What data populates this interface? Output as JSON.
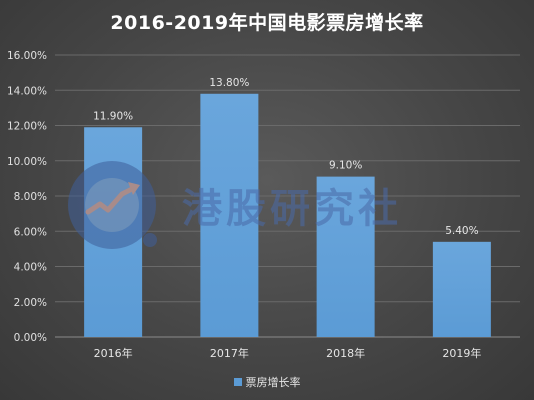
{
  "chart_data": {
    "type": "bar",
    "title": "2016-2019年中国电影票房增长率",
    "categories": [
      "2016年",
      "2017年",
      "2018年",
      "2019年"
    ],
    "series": [
      {
        "name": "票房增长率",
        "values": [
          11.9,
          13.8,
          9.1,
          5.4
        ],
        "data_labels": [
          "11.90%",
          "13.80%",
          "9.10%",
          "5.40%"
        ],
        "color": "#5b9bd5"
      }
    ],
    "y_ticks": [
      "0.00%",
      "2.00%",
      "4.00%",
      "6.00%",
      "8.00%",
      "10.00%",
      "12.00%",
      "14.00%",
      "16.00%"
    ],
    "ylim": [
      0,
      16
    ],
    "xlabel": "",
    "ylabel": "",
    "grid": true,
    "legend_position": "bottom"
  },
  "watermark": {
    "text": "港股研究社",
    "icon": "growth-chart-logo-icon"
  },
  "colors": {
    "background": "#474747",
    "bar": "#5b9bd5",
    "text": "#e6e6e6"
  }
}
